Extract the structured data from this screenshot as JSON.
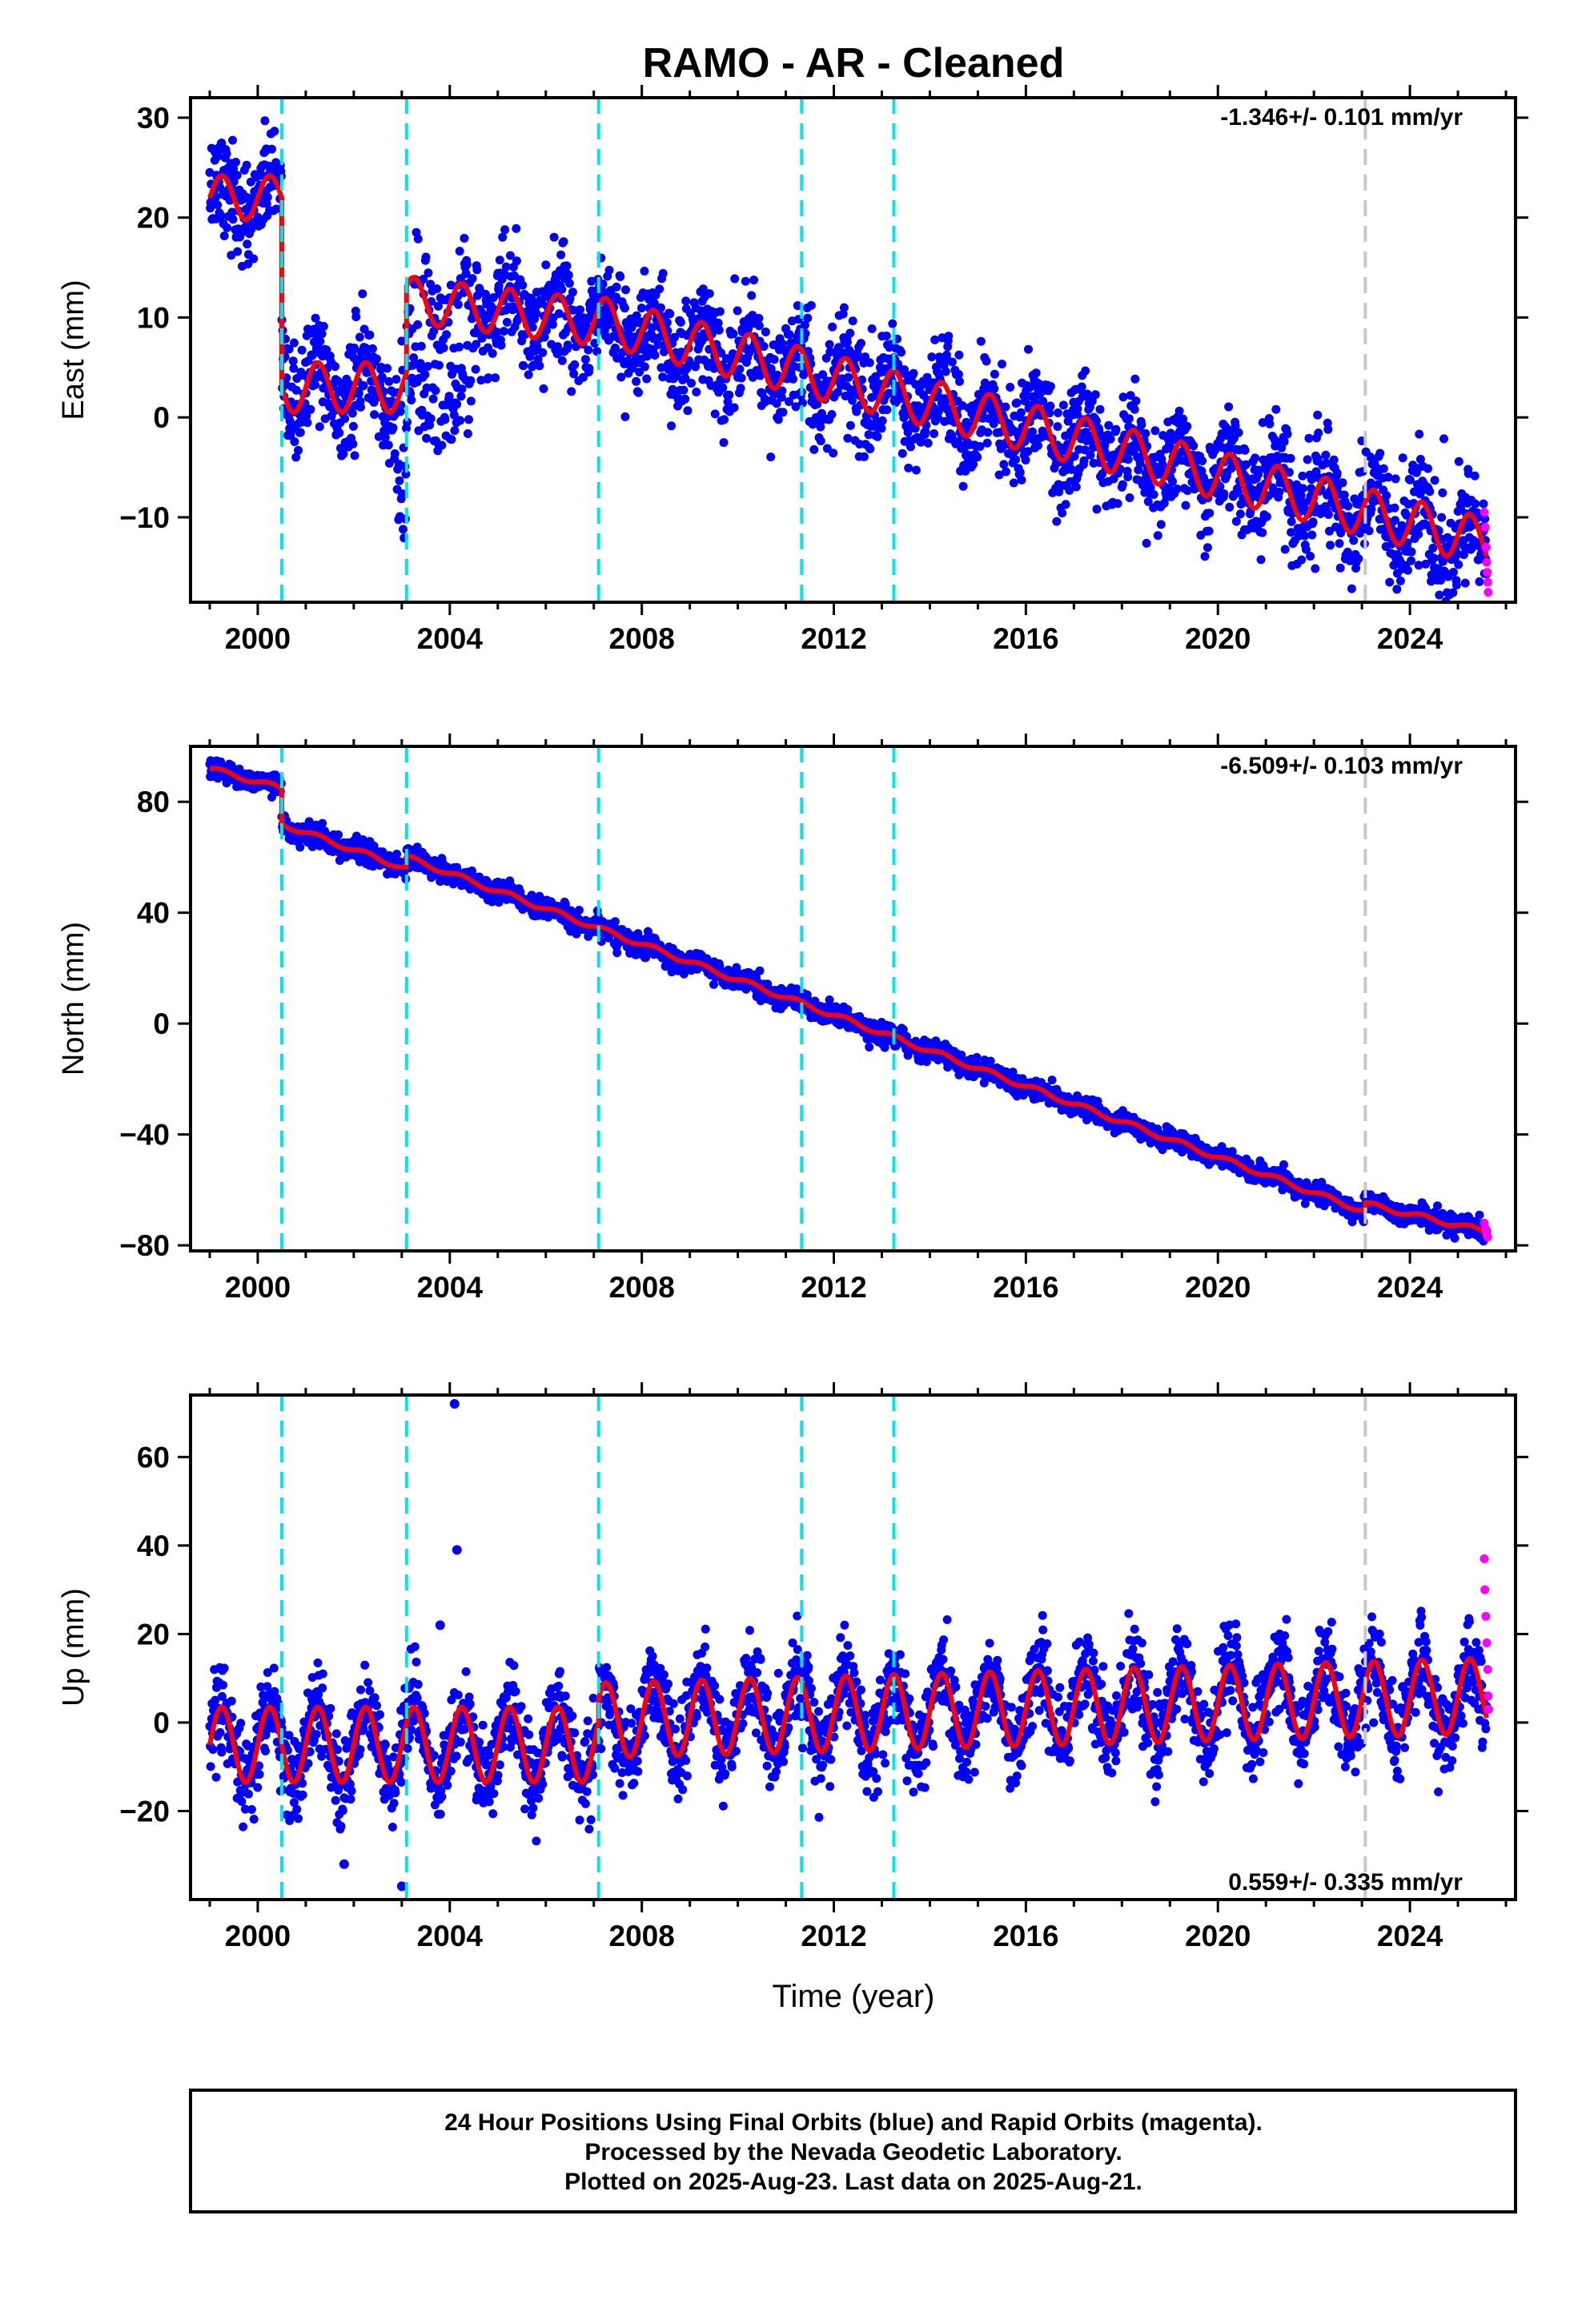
{
  "title": "RAMO  - AR - Cleaned",
  "xlabel": "Time (year)",
  "footer": {
    "line1": "24 Hour Positions Using Final Orbits (blue) and Rapid Orbits (magenta).",
    "line2": "Processed by the Nevada Geodetic Laboratory.",
    "line3": "Plotted on 2025-Aug-23. Last data on 2025-Aug-21."
  },
  "colors": {
    "final_orbits": "#0000ff",
    "rapid_orbits": "#ff00ff",
    "model": "#ff0000",
    "equipment_change": "#00e5ee",
    "other_event": "#c8c8c8"
  },
  "chart_data": [
    {
      "type": "scatter",
      "panel": "east",
      "ylabel": "East (mm)",
      "rate_text": "-1.346+/- 0.101 mm/yr",
      "rate_position": "top-right",
      "xlim": [
        1998.6,
        2026.2
      ],
      "ylim": [
        -18.5,
        32
      ],
      "x_ticks": [
        2000,
        2004,
        2008,
        2012,
        2016,
        2020,
        2024
      ],
      "y_ticks": [
        -10,
        0,
        10,
        20,
        30
      ],
      "cyan_events": [
        2000.5,
        2003.1,
        2007.1,
        2011.33,
        2013.25
      ],
      "gray_events": [
        2023.07
      ],
      "model_segments": [
        {
          "x_start": 1999.0,
          "x_end": 2000.5,
          "offset": 22.0,
          "rate": 0.0,
          "amp": 2.2,
          "phase_deg": 0
        },
        {
          "x_start": 2000.5,
          "x_end": 2003.1,
          "offset": 3.0,
          "rate": 0.0,
          "amp": 2.5,
          "phase_deg": 0
        },
        {
          "x_start": 2003.1,
          "x_end": 2007.1,
          "offset": 11.8,
          "rate": -0.58,
          "amp": 2.3,
          "phase_deg": 0
        },
        {
          "x_start": 2007.1,
          "x_end": 2025.6,
          "offset": 9.7,
          "rate": -1.2,
          "amp": 2.4,
          "phase_deg": 0
        }
      ],
      "scatter_noise_mm": 2.6,
      "rapid_points": {
        "x": [
          2025.55,
          2025.57,
          2025.59,
          2025.6,
          2025.61,
          2025.62,
          2025.63
        ],
        "y": [
          -9.5,
          -11.0,
          -13.0,
          -14.5,
          -15.5,
          -16.5,
          -17.5
        ]
      }
    },
    {
      "type": "scatter",
      "panel": "north",
      "ylabel": "North (mm)",
      "rate_text": "-6.509+/- 0.103 mm/yr",
      "rate_position": "top-right",
      "xlim": [
        1998.6,
        2026.2
      ],
      "ylim": [
        -82,
        100
      ],
      "x_ticks": [
        2000,
        2004,
        2008,
        2012,
        2016,
        2020,
        2024
      ],
      "y_ticks": [
        -80,
        -40,
        0,
        40,
        80
      ],
      "cyan_events": [
        2000.5,
        2003.1,
        2007.1,
        2011.33,
        2013.25
      ],
      "gray_events": [
        2023.07
      ],
      "model_segments": [
        {
          "x_start": 1999.0,
          "x_end": 2000.5,
          "offset": 92.0,
          "rate": -4.8,
          "amp": 0.9,
          "phase_deg": 0
        },
        {
          "x_start": 2000.5,
          "x_end": 2003.1,
          "offset": 72.0,
          "rate": -6.2,
          "amp": 0.9,
          "phase_deg": 0
        },
        {
          "x_start": 2003.1,
          "x_end": 2023.07,
          "offset": 60.0,
          "rate": -6.4,
          "amp": 0.9,
          "phase_deg": 0
        },
        {
          "x_start": 2023.07,
          "x_end": 2025.6,
          "offset": -65.0,
          "rate": -4.0,
          "amp": 0.9,
          "phase_deg": 0
        }
      ],
      "scatter_noise_mm": 1.8,
      "rapid_points": {
        "x": [
          2025.55,
          2025.58,
          2025.6,
          2025.62
        ],
        "y": [
          -72,
          -74,
          -76,
          -77
        ]
      }
    },
    {
      "type": "scatter",
      "panel": "up",
      "ylabel": "Up (mm)",
      "rate_text": "0.559+/- 0.335 mm/yr",
      "rate_position": "bottom-right",
      "xlim": [
        1998.6,
        2026.2
      ],
      "ylim": [
        -40,
        74
      ],
      "x_ticks": [
        2000,
        2004,
        2008,
        2012,
        2016,
        2020,
        2024
      ],
      "y_ticks": [
        -20,
        0,
        20,
        40,
        60
      ],
      "cyan_events": [
        2000.5,
        2003.1,
        2007.1,
        2011.33,
        2013.25
      ],
      "gray_events": [
        2023.07
      ],
      "model_segments": [
        {
          "x_start": 1999.0,
          "x_end": 2007.1,
          "offset": -5.0,
          "rate": 0.0,
          "amp": 8.5,
          "phase_deg": 0
        },
        {
          "x_start": 2007.1,
          "x_end": 2025.6,
          "offset": 0.5,
          "rate": 0.3,
          "amp": 8.5,
          "phase_deg": 0
        }
      ],
      "scatter_noise_mm": 5.0,
      "outliers": {
        "x": [
          2004.1,
          2004.15,
          2001.8,
          2003.0,
          2003.8
        ],
        "y": [
          72,
          39,
          -32,
          -37,
          22
        ]
      },
      "rapid_points": {
        "x": [
          2025.55,
          2025.56,
          2025.58,
          2025.6,
          2025.62,
          2025.63,
          2025.64
        ],
        "y": [
          37,
          30,
          24,
          18,
          12,
          6,
          3
        ]
      }
    }
  ]
}
